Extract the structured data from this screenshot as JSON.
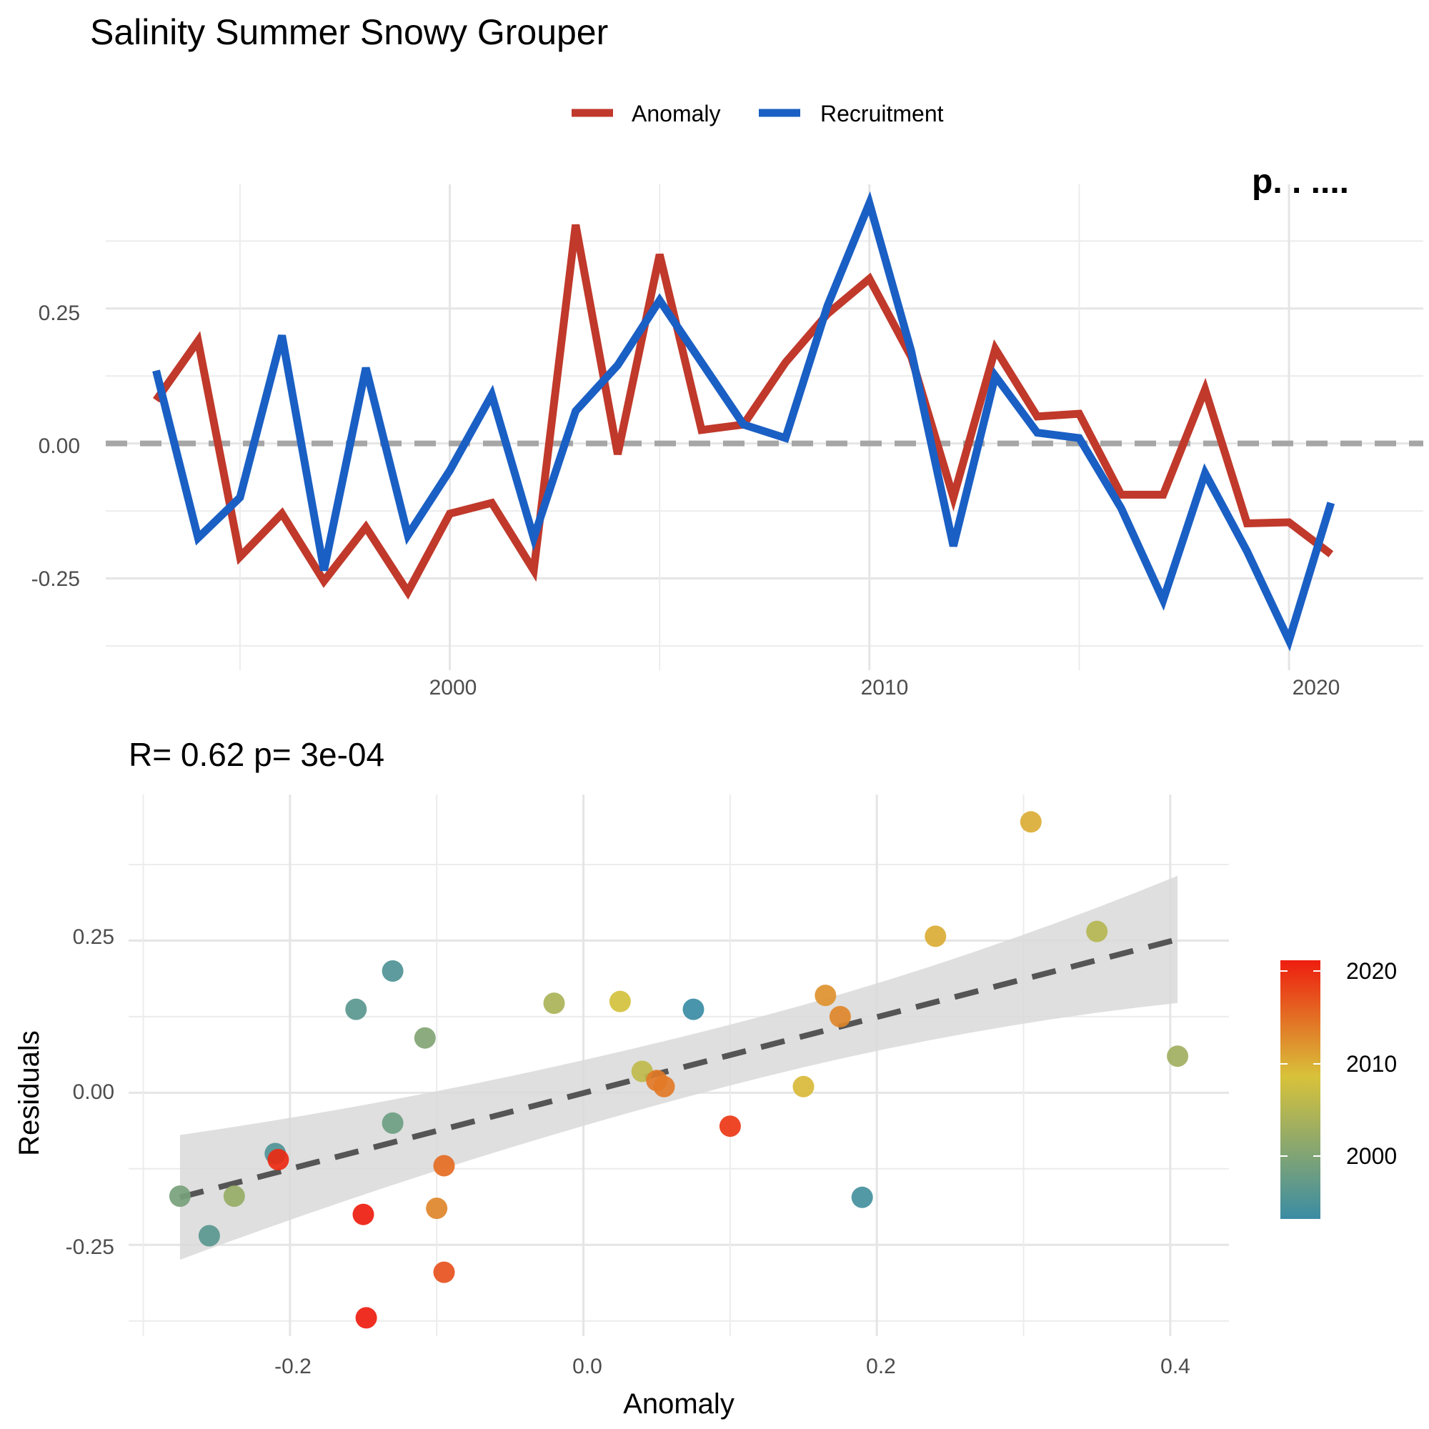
{
  "title": "Salinity Summer Snowy Grouper",
  "timeseries": {
    "legend": {
      "items": [
        "Anomaly",
        "Recruitment"
      ]
    },
    "corner_label": "p. . ....",
    "x_ticks": [
      "2000",
      "2010",
      "2020"
    ],
    "y_ticks": [
      "0.25",
      "0.00",
      "-0.25"
    ]
  },
  "scatter": {
    "stats_label": "R= 0.62  p= 3e-04",
    "xlabel": "Anomaly",
    "ylabel": "Residuals",
    "x_ticks": [
      "-0.2",
      "0.0",
      "0.2",
      "0.4"
    ],
    "y_ticks": [
      "0.25",
      "0.00",
      "-0.25"
    ],
    "colorbar_ticks": [
      "2020",
      "2010",
      "2000"
    ]
  },
  "colors": {
    "anomaly": "#c0392b",
    "recruitment": "#1a5fc4",
    "zero_line": "#a6a6a6",
    "fit_line": "#555555",
    "ribbon": "#d9d9d9",
    "colorbar_low": "#3a8ca4",
    "colorbar_mid": "#d8c23a",
    "colorbar_high": "#ee1d0f"
  },
  "chart_data": [
    {
      "type": "line",
      "title": "Salinity Summer Snowy Grouper",
      "x": [
        1993,
        1994,
        1995,
        1996,
        1997,
        1998,
        1999,
        2000,
        2001,
        2002,
        2003,
        2004,
        2005,
        2006,
        2007,
        2008,
        2009,
        2010,
        2011,
        2012,
        2013,
        2014,
        2015,
        2016,
        2017,
        2018,
        2019,
        2020,
        2021
      ],
      "series": [
        {
          "name": "Anomaly",
          "values": [
            0.08,
            0.19,
            -0.21,
            -0.13,
            -0.255,
            -0.155,
            -0.275,
            -0.13,
            -0.11,
            -0.235,
            0.405,
            -0.02,
            0.35,
            0.025,
            0.035,
            0.15,
            0.24,
            0.305,
            0.16,
            -0.1,
            0.175,
            0.05,
            0.055,
            -0.095,
            -0.095,
            0.1,
            -0.148,
            -0.146,
            -0.205
          ]
        },
        {
          "name": "Recruitment",
          "values": [
            0.135,
            -0.175,
            -0.1,
            0.2,
            -0.235,
            0.14,
            -0.17,
            -0.05,
            0.09,
            -0.175,
            0.06,
            0.145,
            0.265,
            0.15,
            0.035,
            0.01,
            0.255,
            0.445,
            0.17,
            -0.19,
            0.125,
            0.02,
            0.01,
            -0.12,
            -0.29,
            -0.055,
            -0.2,
            -0.365,
            -0.11
          ]
        }
      ],
      "xlim": [
        1991.8,
        2023.2
      ],
      "ylim": [
        -0.42,
        0.48
      ],
      "reference_line": 0,
      "legend": "top-center",
      "grid": true
    },
    {
      "type": "scatter",
      "xlabel": "Anomaly",
      "ylabel": "Residuals",
      "x": [
        -0.275,
        -0.255,
        -0.238,
        -0.21,
        -0.208,
        -0.155,
        -0.15,
        -0.148,
        -0.13,
        -0.13,
        -0.108,
        -0.1,
        -0.095,
        -0.095,
        -0.02,
        0.025,
        0.04,
        0.05,
        0.055,
        0.075,
        0.1,
        0.15,
        0.165,
        0.175,
        0.19,
        0.24,
        0.305,
        0.35,
        0.405
      ],
      "y": [
        -0.17,
        -0.235,
        -0.17,
        -0.1,
        -0.11,
        0.137,
        -0.2,
        -0.37,
        0.2,
        -0.05,
        0.09,
        -0.19,
        -0.295,
        -0.12,
        0.147,
        0.15,
        0.035,
        0.02,
        0.01,
        0.137,
        -0.055,
        0.01,
        0.16,
        0.125,
        -0.172,
        0.257,
        0.445,
        0.265,
        0.06
      ],
      "color_year": [
        1999,
        1996,
        2002,
        1995,
        2020,
        1996,
        2021,
        2021,
        1995,
        1998,
        2000,
        2013,
        2017,
        2015,
        2004,
        2008,
        2006,
        2014,
        2014,
        1993,
        2019,
        2009,
        2012,
        2013,
        1994,
        2010,
        2010,
        2005,
        2003
      ],
      "fit": {
        "x": [
          -0.275,
          0.405
        ],
        "y": [
          -0.172,
          0.252
        ],
        "ci_lower": [
          -0.275,
          0.115
        ],
        "ci_upper": [
          -0.07,
          0.39
        ]
      },
      "xlim": [
        -0.31,
        0.44
      ],
      "ylim": [
        -0.4,
        0.49
      ],
      "colorbar": {
        "label": "",
        "range": [
          1993,
          2021
        ],
        "ticks": [
          2000,
          2010,
          2020
        ]
      },
      "grid": true
    }
  ]
}
